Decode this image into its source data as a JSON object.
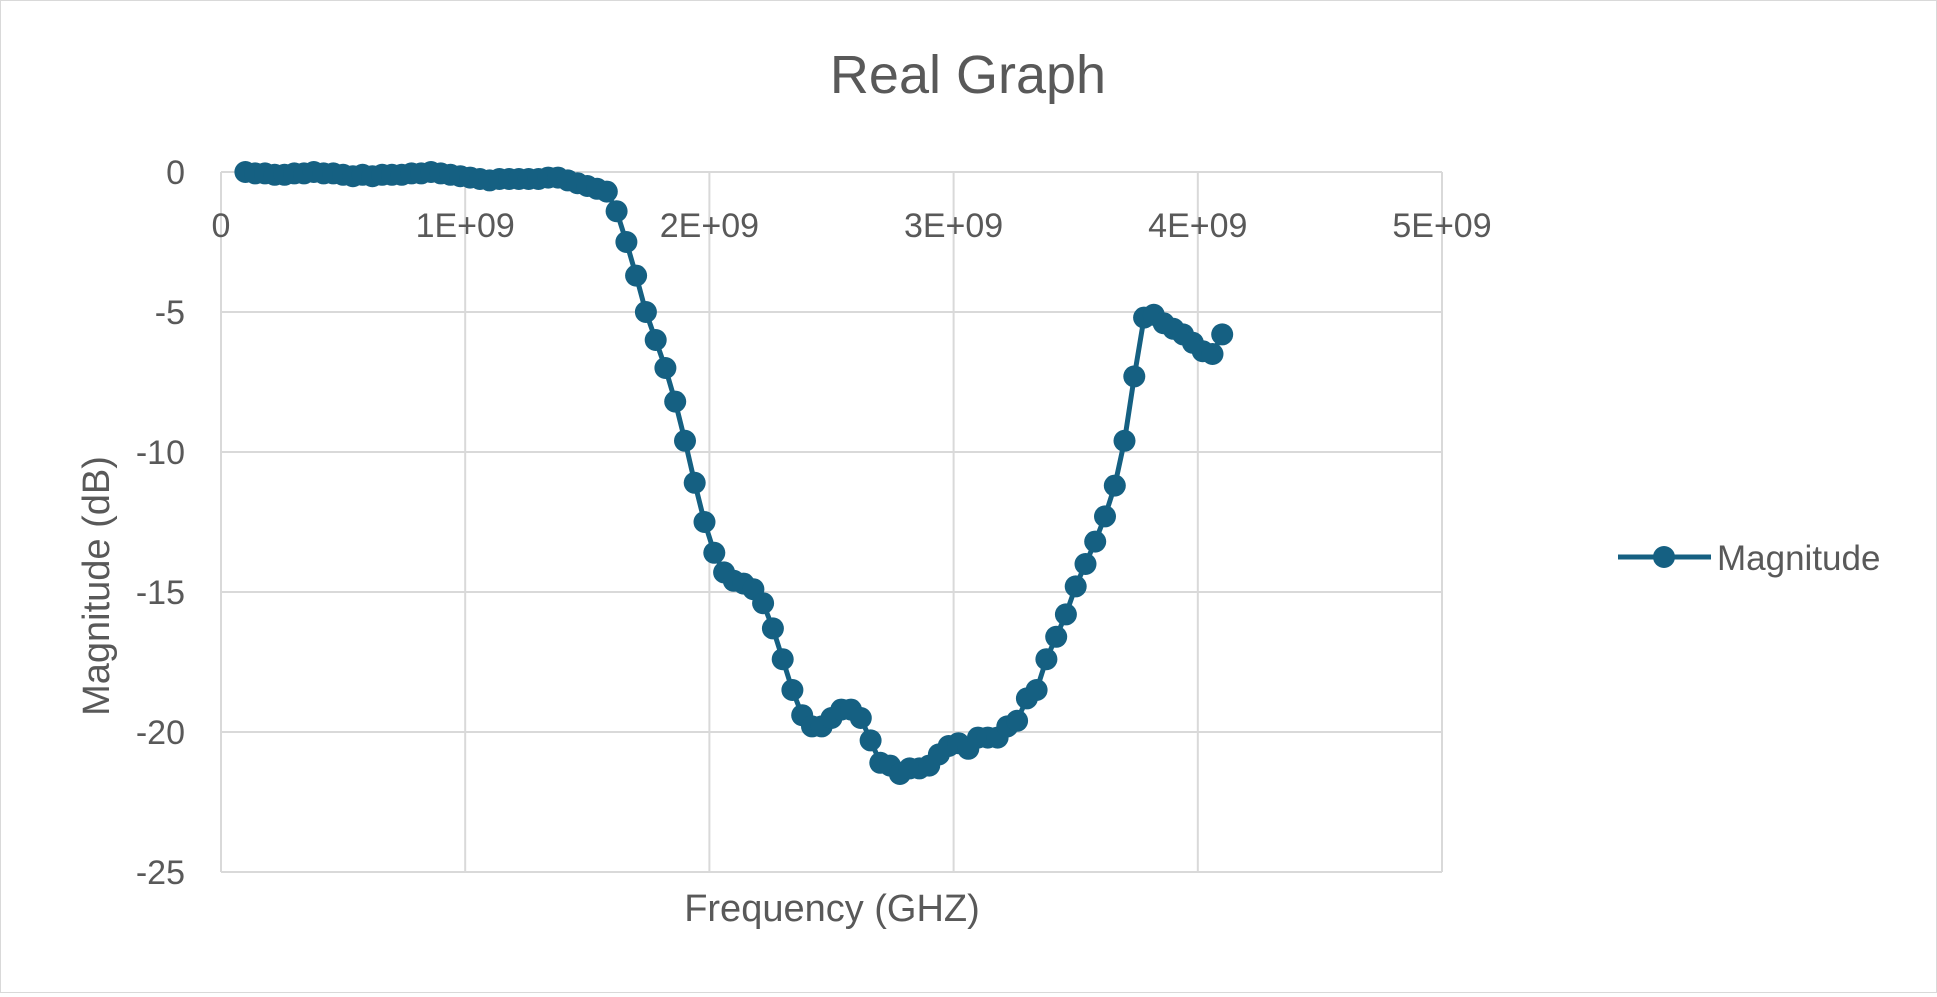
{
  "chart_data": {
    "type": "scatter",
    "title": "Real Graph",
    "xlabel": "Frequency (GHZ)",
    "ylabel": "Magnitude (dB)",
    "xlim": [
      0,
      5000000000
    ],
    "ylim": [
      -25,
      0
    ],
    "x_ticks": [
      0,
      1000000000,
      2000000000,
      3000000000,
      4000000000,
      5000000000
    ],
    "x_tick_labels": [
      "0",
      "1E+09",
      "2E+09",
      "3E+09",
      "4E+09",
      "5E+09"
    ],
    "y_ticks": [
      0,
      -5,
      -10,
      -15,
      -20,
      -25
    ],
    "y_tick_labels": [
      "0",
      "-5",
      "-10",
      "-15",
      "-20",
      "-25"
    ],
    "grid": true,
    "legend_position": "right",
    "series": [
      {
        "name": "Magnitude",
        "color": "#156082",
        "x": [
          100000000,
          140000000,
          180000000,
          220000000,
          260000000,
          300000000,
          340000000,
          380000000,
          420000000,
          460000000,
          500000000,
          540000000,
          580000000,
          620000000,
          660000000,
          700000000,
          740000000,
          780000000,
          820000000,
          860000000,
          900000000,
          940000000,
          980000000,
          1020000000,
          1060000000,
          1100000000,
          1140000000,
          1180000000,
          1220000000,
          1260000000,
          1300000000,
          1340000000,
          1380000000,
          1420000000,
          1460000000,
          1500000000,
          1540000000,
          1580000000,
          1620000000,
          1660000000,
          1700000000,
          1740000000,
          1780000000,
          1820000000,
          1860000000,
          1900000000,
          1940000000,
          1980000000,
          2020000000,
          2060000000,
          2100000000,
          2140000000,
          2180000000,
          2220000000,
          2260000000,
          2300000000,
          2340000000,
          2380000000,
          2420000000,
          2460000000,
          2500000000,
          2540000000,
          2580000000,
          2620000000,
          2660000000,
          2700000000,
          2740000000,
          2780000000,
          2820000000,
          2860000000,
          2900000000,
          2940000000,
          2980000000,
          3020000000,
          3060000000,
          3100000000,
          3140000000,
          3180000000,
          3220000000,
          3260000000,
          3300000000,
          3340000000,
          3380000000,
          3420000000,
          3460000000,
          3500000000,
          3540000000,
          3580000000,
          3620000000,
          3660000000,
          3700000000,
          3740000000,
          3780000000,
          3820000000,
          3860000000,
          3900000000,
          3940000000,
          3980000000,
          4020000000,
          4060000000,
          4100000000
        ],
        "y": [
          0,
          -0.05,
          -0.05,
          -0.1,
          -0.1,
          -0.05,
          -0.05,
          0,
          -0.05,
          -0.05,
          -0.1,
          -0.15,
          -0.1,
          -0.15,
          -0.1,
          -0.1,
          -0.1,
          -0.05,
          -0.05,
          0,
          -0.05,
          -0.1,
          -0.15,
          -0.2,
          -0.25,
          -0.3,
          -0.25,
          -0.25,
          -0.25,
          -0.25,
          -0.25,
          -0.2,
          -0.2,
          -0.3,
          -0.4,
          -0.5,
          -0.6,
          -0.7,
          -1.4,
          -2.5,
          -3.7,
          -5,
          -6,
          -7,
          -8.2,
          -9.6,
          -11.1,
          -12.5,
          -13.6,
          -14.3,
          -14.6,
          -14.7,
          -14.9,
          -15.4,
          -16.3,
          -17.4,
          -18.5,
          -19.4,
          -19.8,
          -19.8,
          -19.5,
          -19.2,
          -19.2,
          -19.5,
          -20.3,
          -21.1,
          -21.2,
          -21.5,
          -21.3,
          -21.3,
          -21.2,
          -20.8,
          -20.5,
          -20.4,
          -20.6,
          -20.2,
          -20.2,
          -20.2,
          -19.8,
          -19.6,
          -18.8,
          -18.5,
          -17.4,
          -16.6,
          -15.8,
          -14.8,
          -14,
          -13.2,
          -12.3,
          -11.2,
          -9.6,
          -7.3,
          -5.2,
          -5.1,
          -5.4,
          -5.6,
          -5.8,
          -6.1,
          -6.4,
          -6.5,
          -5.8
        ]
      }
    ]
  }
}
